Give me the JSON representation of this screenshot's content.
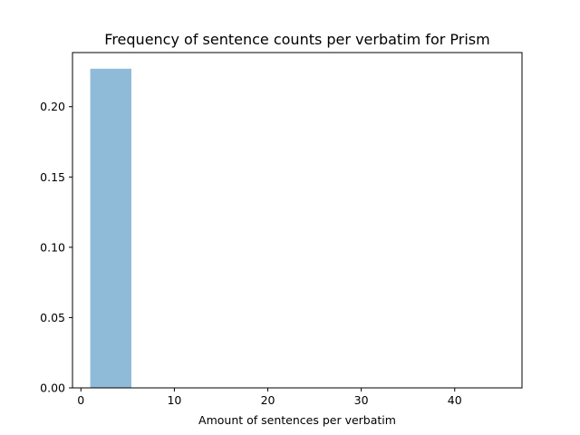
{
  "chart_data": {
    "type": "bar",
    "title": "Frequency of sentence counts per verbatim for Prism",
    "xlabel": "Amount of sentences per verbatim",
    "ylabel": "",
    "xlim": [
      -0.9,
      47.2
    ],
    "ylim": [
      0,
      0.2385
    ],
    "x_ticks": [
      0,
      10,
      20,
      30,
      40
    ],
    "y_ticks": [
      0.0,
      0.05,
      0.1,
      0.15,
      0.2
    ],
    "y_tick_labels": [
      "0.00",
      "0.05",
      "0.10",
      "0.15",
      "0.20"
    ],
    "x_tick_labels": [
      "0",
      "10",
      "20",
      "30",
      "40"
    ],
    "bins": [
      {
        "x0": 1.0,
        "x1": 5.4,
        "value": 0.227
      }
    ],
    "bar_color": "#8fbbd9",
    "grid": false,
    "legend": "none"
  }
}
